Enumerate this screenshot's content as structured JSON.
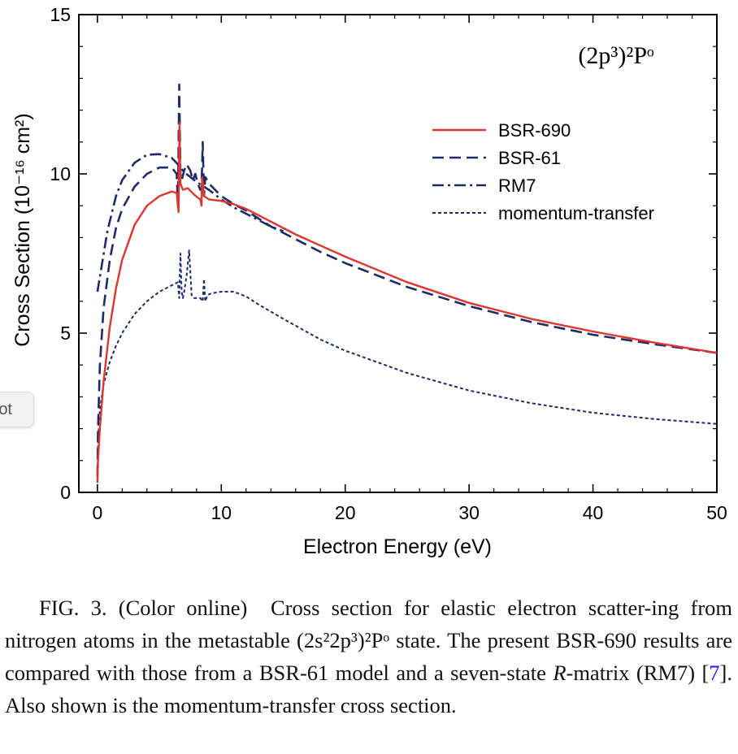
{
  "colors": {
    "bsr690": "#e0352c",
    "bsr61": "#1f2a6b",
    "rm7": "#1f2a6b",
    "momentum": "#1f2a6b",
    "axis": "#000000",
    "caption_ref": "#1a1aff"
  },
  "side_tab": {
    "label": "ot"
  },
  "chart_data": {
    "type": "line",
    "state_label": "(2p³)²Pᵒ",
    "xlabel": "Electron Energy (eV)",
    "ylabel": "Cross Section (10⁻¹⁶ cm²)",
    "xlim": [
      -1.5,
      50
    ],
    "ylim": [
      0,
      15
    ],
    "xticks": [
      0,
      10,
      20,
      30,
      40,
      50
    ],
    "yticks": [
      0,
      5,
      10,
      15
    ],
    "legend_position": "upper-right",
    "series": [
      {
        "name": "BSR-690",
        "style": "solid",
        "x": [
          0,
          0.05,
          0.2,
          0.5,
          1,
          1.5,
          2,
          3,
          4,
          5,
          6,
          6.4,
          6.55,
          6.62,
          6.7,
          6.9,
          7.3,
          7.8,
          8.1,
          8.3,
          8.4,
          8.45,
          8.6,
          9,
          10,
          11,
          12,
          14,
          16,
          18,
          20,
          25,
          30,
          35,
          40,
          45,
          50
        ],
        "y": [
          0.3,
          1.0,
          2.0,
          3.5,
          5.2,
          6.4,
          7.3,
          8.4,
          9.0,
          9.3,
          9.45,
          9.4,
          8.8,
          11.6,
          9.7,
          9.5,
          9.55,
          9.35,
          9.25,
          9.2,
          9.0,
          9.9,
          9.3,
          9.2,
          9.15,
          9.05,
          8.9,
          8.5,
          8.1,
          7.75,
          7.4,
          6.6,
          5.95,
          5.45,
          5.05,
          4.7,
          4.38
        ]
      },
      {
        "name": "BSR-61",
        "style": "dashed",
        "x": [
          0,
          0.05,
          0.2,
          0.5,
          1,
          1.5,
          2,
          3,
          4,
          5,
          6,
          6.4,
          6.5,
          6.6,
          6.7,
          6.8,
          7.0,
          7.2,
          7.5,
          7.7,
          7.9,
          8.1,
          8.3,
          8.4,
          8.5,
          8.6,
          8.7,
          9,
          10,
          11,
          12,
          14,
          16,
          18,
          20,
          25,
          30,
          35,
          40,
          45,
          50
        ],
        "y": [
          0.5,
          2.0,
          4.0,
          5.8,
          7.3,
          8.3,
          8.9,
          9.6,
          10.0,
          10.2,
          10.2,
          10.0,
          9.0,
          12.8,
          10.0,
          9.8,
          10.1,
          10.3,
          10.1,
          9.8,
          10.0,
          9.7,
          9.5,
          9.5,
          11.0,
          9.3,
          9.9,
          9.7,
          9.3,
          9.05,
          8.85,
          8.35,
          7.95,
          7.55,
          7.2,
          6.45,
          5.85,
          5.35,
          4.95,
          4.65,
          4.38
        ]
      },
      {
        "name": "RM7",
        "style": "dash-dot",
        "x": [
          0,
          0.3,
          0.8,
          1.5,
          2,
          3,
          4,
          5,
          6,
          6.5,
          7,
          8,
          9,
          10,
          11,
          12,
          13,
          14,
          15
        ],
        "y": [
          6.3,
          7.0,
          8.2,
          9.3,
          9.8,
          10.35,
          10.6,
          10.62,
          10.5,
          10.3,
          10.05,
          9.75,
          9.5,
          9.2,
          8.95,
          8.75,
          8.55,
          8.35,
          8.2
        ]
      },
      {
        "name": "momentum-transfer",
        "style": "dotted",
        "x": [
          0,
          0.05,
          0.2,
          0.5,
          1,
          1.5,
          2,
          3,
          4,
          5,
          6,
          6.5,
          6.6,
          6.7,
          6.8,
          6.9,
          7.0,
          7.2,
          7.4,
          7.6,
          7.8,
          8.0,
          8.3,
          8.5,
          8.6,
          8.7,
          8.9,
          9.2,
          10,
          11,
          12,
          13,
          15,
          18,
          20,
          25,
          30,
          35,
          40,
          45,
          50
        ],
        "y": [
          0.3,
          1.5,
          2.6,
          3.4,
          4.1,
          4.6,
          5.0,
          5.6,
          6.0,
          6.3,
          6.5,
          6.6,
          6.1,
          7.5,
          6.3,
          6.1,
          6.3,
          6.8,
          7.6,
          6.2,
          6.1,
          6.1,
          6.1,
          6.0,
          6.7,
          6.0,
          6.2,
          6.25,
          6.3,
          6.3,
          6.15,
          5.9,
          5.45,
          4.8,
          4.45,
          3.75,
          3.2,
          2.8,
          2.5,
          2.3,
          2.15
        ]
      }
    ]
  },
  "caption": {
    "fig_label": "FIG. 3. (Color online)",
    "text_1": "Cross section for elastic electron scatter-ing from nitrogen atoms in the metastable (2s²2p³)²Pᵒ state. The present BSR-690 results are compared with those from a BSR-61 model and a seven-state ",
    "r_italic": "R",
    "text_2": "-matrix (RM7) [",
    "ref": "7",
    "text_3": "]. Also shown is the momentum-transfer cross section."
  }
}
